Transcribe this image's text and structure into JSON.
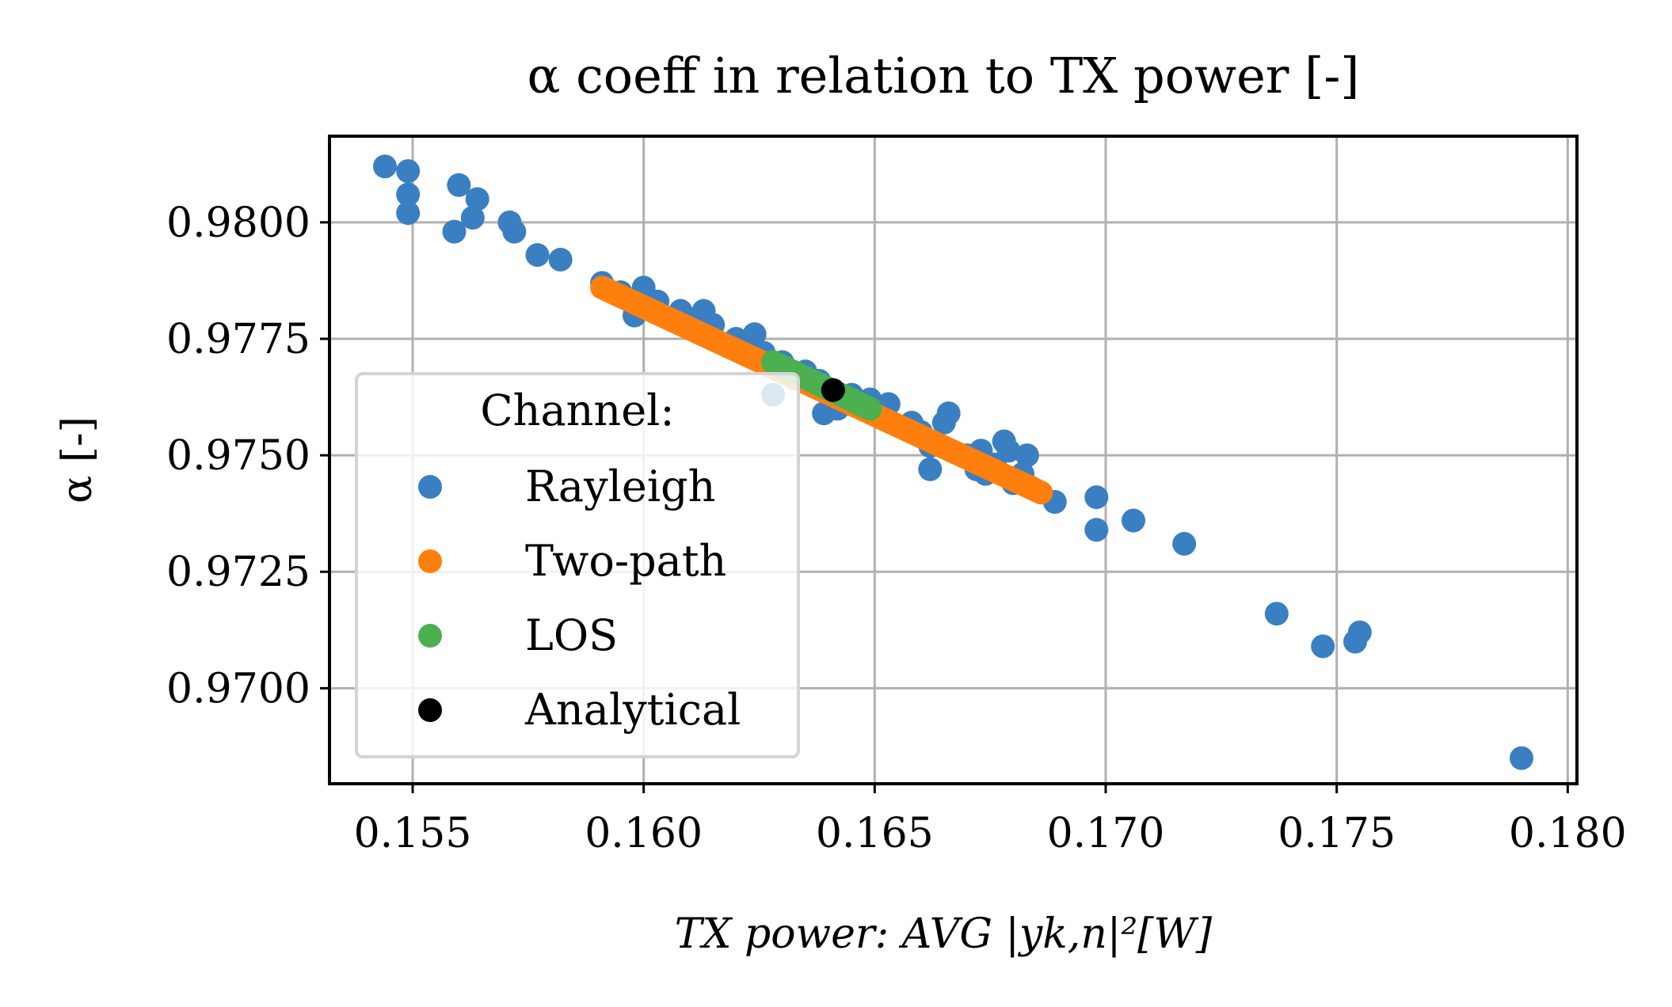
{
  "chart_data": {
    "type": "scatter",
    "title": "α coeff in relation to TX power [-]",
    "xlabel": "TX power: AVG |yk,n|²[W]",
    "ylabel": "α [-]",
    "xlim": [
      0.1532,
      0.1802
    ],
    "ylim": [
      0.96795,
      0.98185
    ],
    "x_ticks": [
      0.155,
      0.16,
      0.165,
      0.17,
      0.175,
      0.18
    ],
    "x_tick_labels": [
      "0.155",
      "0.160",
      "0.165",
      "0.170",
      "0.175",
      "0.180"
    ],
    "y_ticks": [
      0.97,
      0.9725,
      0.975,
      0.9775,
      0.98
    ],
    "y_tick_labels": [
      "0.9700",
      "0.9725",
      "0.9750",
      "0.9775",
      "0.9800"
    ],
    "grid": true,
    "legend": {
      "title": "Channel:",
      "placement": "lower-left",
      "entries": [
        "Rayleigh",
        "Two-path",
        "LOS",
        "Analytical"
      ]
    },
    "series": [
      {
        "name": "Rayleigh",
        "color": "#3a7fc1",
        "points": [
          [
            0.1544,
            0.9812
          ],
          [
            0.1549,
            0.9811
          ],
          [
            0.1549,
            0.9806
          ],
          [
            0.1549,
            0.9802
          ],
          [
            0.1559,
            0.9798
          ],
          [
            0.156,
            0.9808
          ],
          [
            0.1563,
            0.9801
          ],
          [
            0.1564,
            0.9805
          ],
          [
            0.1571,
            0.98
          ],
          [
            0.1572,
            0.9798
          ],
          [
            0.1577,
            0.9793
          ],
          [
            0.1582,
            0.9792
          ],
          [
            0.1591,
            0.9787
          ],
          [
            0.1595,
            0.9785
          ],
          [
            0.1598,
            0.978
          ],
          [
            0.16,
            0.9786
          ],
          [
            0.1603,
            0.9783
          ],
          [
            0.1608,
            0.9781
          ],
          [
            0.161,
            0.9779
          ],
          [
            0.1613,
            0.9781
          ],
          [
            0.1615,
            0.9778
          ],
          [
            0.162,
            0.9775
          ],
          [
            0.1624,
            0.9776
          ],
          [
            0.1626,
            0.9772
          ],
          [
            0.1628,
            0.9763
          ],
          [
            0.163,
            0.977
          ],
          [
            0.1635,
            0.9768
          ],
          [
            0.1638,
            0.9766
          ],
          [
            0.1639,
            0.9759
          ],
          [
            0.1642,
            0.976
          ],
          [
            0.1645,
            0.9763
          ],
          [
            0.1649,
            0.9762
          ],
          [
            0.1653,
            0.9761
          ],
          [
            0.1658,
            0.9757
          ],
          [
            0.166,
            0.9755
          ],
          [
            0.1662,
            0.9752
          ],
          [
            0.1662,
            0.9747
          ],
          [
            0.1665,
            0.9757
          ],
          [
            0.1666,
            0.9759
          ],
          [
            0.167,
            0.975
          ],
          [
            0.1672,
            0.9747
          ],
          [
            0.1673,
            0.9751
          ],
          [
            0.1674,
            0.9746
          ],
          [
            0.1676,
            0.9748
          ],
          [
            0.1678,
            0.9753
          ],
          [
            0.1679,
            0.9751
          ],
          [
            0.168,
            0.9744
          ],
          [
            0.1682,
            0.9746
          ],
          [
            0.1683,
            0.975
          ],
          [
            0.1684,
            0.9743
          ],
          [
            0.1689,
            0.974
          ],
          [
            0.1698,
            0.9741
          ],
          [
            0.1698,
            0.9734
          ],
          [
            0.1706,
            0.9736
          ],
          [
            0.1717,
            0.9731
          ],
          [
            0.1737,
            0.9716
          ],
          [
            0.1747,
            0.9709
          ],
          [
            0.1754,
            0.971
          ],
          [
            0.1755,
            0.9712
          ],
          [
            0.179,
            0.9685
          ]
        ]
      },
      {
        "name": "Two-path",
        "color": "#ff7f0e",
        "line_from": [
          0.1591,
          0.9786
        ],
        "line_to": [
          0.1686,
          0.9742
        ],
        "count": 120
      },
      {
        "name": "LOS",
        "color": "#4caf50",
        "line_from": [
          0.1628,
          0.977
        ],
        "line_to": [
          0.1649,
          0.976
        ],
        "count": 30
      },
      {
        "name": "Analytical",
        "color": "#000000",
        "points": [
          [
            0.1641,
            0.9764
          ]
        ]
      }
    ]
  }
}
